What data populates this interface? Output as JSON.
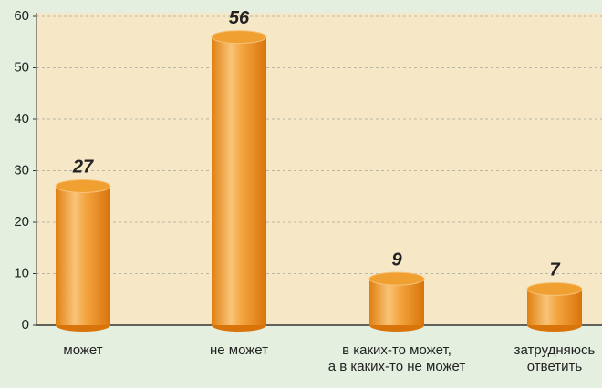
{
  "chart_data": {
    "type": "bar",
    "categories": [
      "может",
      "не может",
      "в каких-то может,\nа в каких-то не может",
      "затрудняюсь\nответить"
    ],
    "values": [
      27,
      56,
      9,
      7
    ],
    "color": "#f0a030",
    "ylim": [
      0,
      60
    ],
    "yticks": [
      0,
      10,
      20,
      30,
      40,
      50,
      60
    ],
    "grid": true
  }
}
